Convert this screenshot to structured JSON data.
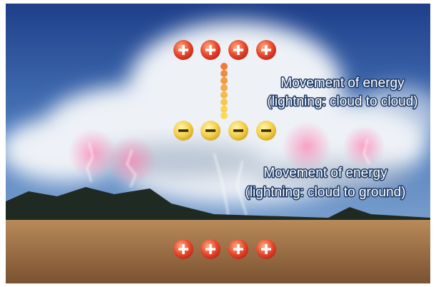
{
  "labels": [
    {
      "lines": [
        "Movement of energy",
        "(lightning: cloud to cloud)"
      ]
    },
    {
      "lines": [
        "Movement of energy",
        "(lightning: cloud to ground)"
      ]
    }
  ]
}
